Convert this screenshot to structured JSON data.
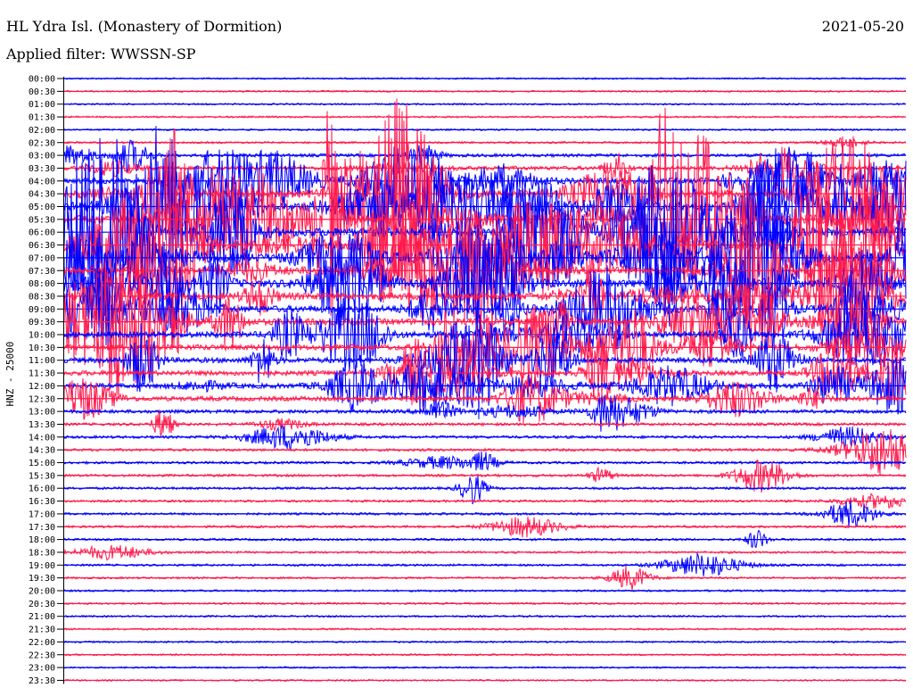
{
  "header": {
    "station": "HL Ydra Isl. (Monastery of Dormition)",
    "filter": "Applied filter: WWSSN-SP",
    "date": "2021-05-20"
  },
  "colors": {
    "trace_a": "#0000ff",
    "trace_b": "#ff1a4d",
    "background": "#ffffff",
    "text": "#000000"
  },
  "chart_data": {
    "type": "line",
    "title": "HL Ydra Isl. (Monastery of Dormition)",
    "subtitle": "Applied filter: WWSSN-SP",
    "date": "2021-05-20",
    "ylabel": "HNZ - 25000",
    "xlabel": "",
    "grid": false,
    "series": [
      {
        "x": [
          "00:00",
          "00:30",
          "01:00",
          "01:30",
          "02:00",
          "02:30",
          "03:00",
          "03:30",
          "04:00",
          "04:30",
          "05:00",
          "05:30",
          "06:00",
          "06:30",
          "07:00",
          "07:30",
          "08:00",
          "08:30",
          "09:00",
          "09:30",
          "10:00",
          "10:30",
          "11:00",
          "11:30",
          "12:00",
          "12:30",
          "13:00",
          "13:30",
          "14:00",
          "14:30",
          "15:00",
          "15:30",
          "16:00",
          "16:30",
          "17:00",
          "17:30",
          "18:00",
          "18:30",
          "19:00",
          "19:30",
          "20:00",
          "20:30",
          "21:00",
          "21:30",
          "22:00",
          "22:30",
          "23:00",
          "23:30"
        ],
        "activity": [
          0.02,
          0.03,
          0.03,
          0.04,
          0.04,
          0.08,
          0.25,
          0.35,
          0.6,
          0.8,
          1,
          1,
          1,
          1,
          0.95,
          0.9,
          0.85,
          0.8,
          0.75,
          0.7,
          0.65,
          0.6,
          0.55,
          0.5,
          0.5,
          0.45,
          0.3,
          0.2,
          0.18,
          0.16,
          0.15,
          0.15,
          0.14,
          0.13,
          0.12,
          0.12,
          0.12,
          0.1,
          0.1,
          0.08,
          0.07,
          0.06,
          0.06,
          0.05,
          0.04,
          0.04,
          0.03,
          0.03
        ]
      }
    ]
  }
}
